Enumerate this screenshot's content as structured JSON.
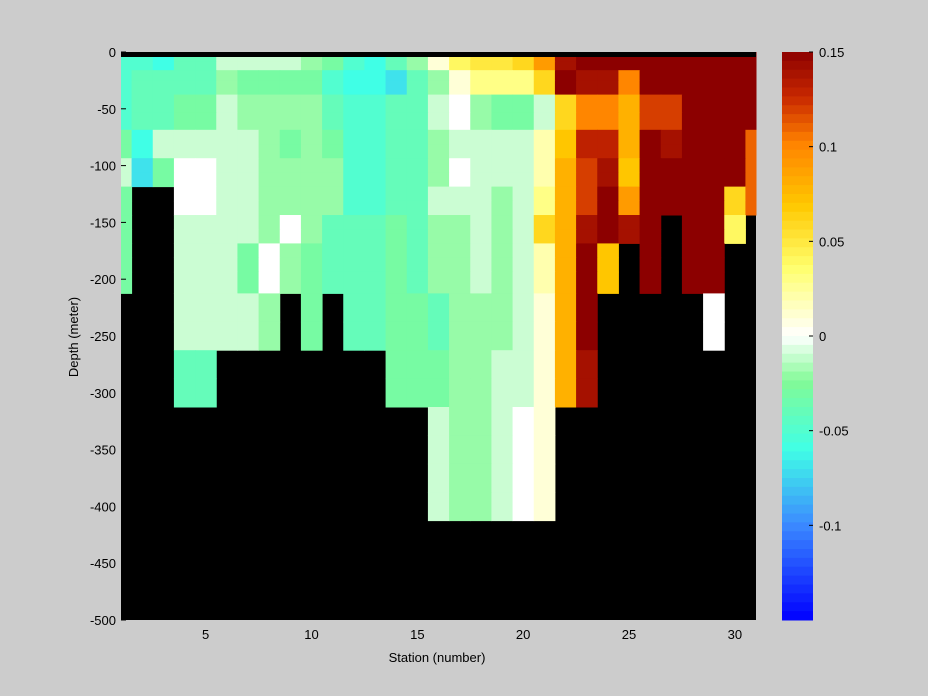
{
  "chart_data": {
    "type": "heatmap",
    "title": "",
    "xlabel": "Station (number)",
    "ylabel": "Depth (meter)",
    "xlim": [
      1,
      31
    ],
    "ylim": [
      -500,
      0
    ],
    "x_ticks": [
      5,
      10,
      15,
      20,
      25,
      30
    ],
    "y_ticks": [
      0,
      -50,
      -100,
      -150,
      -200,
      -250,
      -300,
      -350,
      -400,
      -450,
      -500
    ],
    "colorbar": {
      "range": [
        -0.15,
        0.15
      ],
      "ticks": [
        0.15,
        0.1,
        0.05,
        0,
        -0.05,
        -0.1
      ],
      "colormap": "jet-white-center"
    },
    "missing_color": "#000000",
    "stations": [
      1,
      2,
      3,
      4,
      5,
      6,
      7,
      8,
      9,
      10,
      11,
      12,
      13,
      14,
      15,
      16,
      17,
      18,
      19,
      20,
      21,
      22,
      23,
      24,
      25,
      26,
      27,
      28,
      29,
      30,
      31
    ],
    "depth_levels": [
      -5,
      -12,
      -20,
      -30,
      -45,
      -62,
      -75,
      -87,
      -100,
      -112,
      -125,
      -137,
      -150,
      -162,
      -175,
      -187,
      -200,
      -225,
      -250,
      -275,
      -300,
      -325,
      -350,
      -375,
      -400,
      -425,
      -450,
      -475,
      -500
    ],
    "grid": [
      [
        -0.05,
        -0.05,
        -0.06,
        -0.04,
        -0.04,
        -0.01,
        -0.01,
        -0.01,
        -0.01,
        -0.02,
        -0.03,
        -0.05,
        -0.06,
        -0.04,
        -0.02,
        0.01,
        0.04,
        0.05,
        0.05,
        0.06,
        0.09,
        0.14,
        0.15,
        0.15,
        0.15,
        0.15,
        0.15,
        0.15,
        0.15,
        0.15,
        0.15
      ],
      [
        -0.05,
        -0.05,
        -0.06,
        -0.04,
        -0.04,
        -0.01,
        -0.01,
        -0.01,
        -0.01,
        -0.02,
        -0.03,
        -0.05,
        -0.06,
        -0.04,
        -0.02,
        0.01,
        0.04,
        0.05,
        0.05,
        0.06,
        0.09,
        0.14,
        0.15,
        0.15,
        0.15,
        0.15,
        0.15,
        0.15,
        0.15,
        0.15,
        0.15
      ],
      [
        -0.05,
        -0.04,
        -0.04,
        -0.04,
        -0.04,
        -0.02,
        -0.03,
        -0.03,
        -0.03,
        -0.03,
        -0.05,
        -0.06,
        -0.06,
        -0.07,
        -0.04,
        -0.02,
        0.01,
        0.03,
        0.03,
        0.03,
        0.06,
        0.15,
        0.14,
        0.14,
        0.1,
        0.15,
        0.15,
        0.15,
        0.15,
        0.15,
        0.15
      ],
      [
        -0.05,
        -0.04,
        -0.04,
        -0.04,
        -0.04,
        -0.02,
        -0.03,
        -0.03,
        -0.03,
        -0.03,
        -0.05,
        -0.06,
        -0.06,
        -0.07,
        -0.04,
        -0.02,
        0.01,
        0.03,
        0.03,
        0.03,
        0.06,
        0.15,
        0.14,
        0.14,
        0.1,
        0.15,
        0.15,
        0.15,
        0.15,
        0.15,
        0.15
      ],
      [
        -0.05,
        -0.04,
        -0.04,
        -0.03,
        -0.03,
        -0.01,
        -0.02,
        -0.02,
        -0.02,
        -0.02,
        -0.04,
        -0.05,
        -0.05,
        -0.04,
        -0.04,
        -0.01,
        0.0,
        -0.02,
        -0.03,
        -0.03,
        -0.01,
        0.06,
        0.1,
        0.1,
        0.08,
        0.12,
        0.12,
        0.15,
        0.15,
        0.15,
        0.15
      ],
      [
        -0.05,
        -0.04,
        -0.04,
        -0.03,
        -0.03,
        -0.01,
        -0.02,
        -0.02,
        -0.02,
        -0.02,
        -0.04,
        -0.05,
        -0.05,
        -0.04,
        -0.04,
        -0.01,
        0.0,
        -0.02,
        -0.03,
        -0.03,
        -0.01,
        0.06,
        0.1,
        0.1,
        0.08,
        0.12,
        0.12,
        0.15,
        0.15,
        0.15,
        0.15
      ],
      [
        -0.03,
        -0.06,
        -0.01,
        -0.01,
        -0.01,
        -0.01,
        -0.01,
        -0.02,
        -0.03,
        -0.02,
        -0.03,
        -0.05,
        -0.05,
        -0.04,
        -0.04,
        -0.02,
        -0.01,
        -0.01,
        -0.01,
        -0.01,
        0.02,
        0.07,
        0.13,
        0.13,
        0.08,
        0.15,
        0.14,
        0.15,
        0.15,
        0.15,
        0.11
      ],
      [
        -0.03,
        -0.06,
        -0.01,
        -0.01,
        -0.01,
        -0.01,
        -0.01,
        -0.02,
        -0.03,
        -0.02,
        -0.03,
        -0.05,
        -0.05,
        -0.04,
        -0.04,
        -0.02,
        -0.01,
        -0.01,
        -0.01,
        -0.01,
        0.02,
        0.07,
        0.13,
        0.13,
        0.08,
        0.15,
        0.14,
        0.15,
        0.15,
        0.15,
        0.11
      ],
      [
        -0.01,
        -0.07,
        -0.03,
        0.0,
        0.0,
        -0.01,
        -0.01,
        -0.02,
        -0.02,
        -0.02,
        -0.02,
        -0.05,
        -0.05,
        -0.04,
        -0.04,
        -0.02,
        0.0,
        -0.01,
        -0.01,
        -0.01,
        0.02,
        0.08,
        0.12,
        0.14,
        0.07,
        0.15,
        0.15,
        0.15,
        0.15,
        0.15,
        0.11
      ],
      [
        -0.01,
        -0.07,
        -0.03,
        0.0,
        0.0,
        -0.01,
        -0.01,
        -0.02,
        -0.02,
        -0.02,
        -0.02,
        -0.05,
        -0.05,
        -0.04,
        -0.04,
        -0.02,
        0.0,
        -0.01,
        -0.01,
        -0.01,
        0.02,
        0.08,
        0.12,
        0.14,
        0.07,
        0.15,
        0.15,
        0.15,
        0.15,
        0.15,
        0.11
      ],
      [
        -0.03,
        null,
        null,
        0.0,
        0.0,
        -0.01,
        -0.01,
        -0.02,
        -0.02,
        -0.02,
        -0.02,
        -0.05,
        -0.05,
        -0.04,
        -0.04,
        -0.01,
        -0.01,
        -0.01,
        -0.02,
        -0.01,
        0.03,
        0.08,
        0.12,
        0.15,
        0.09,
        0.15,
        0.15,
        0.15,
        0.15,
        0.06,
        0.11
      ],
      [
        -0.03,
        null,
        null,
        0.0,
        0.0,
        -0.01,
        -0.01,
        -0.02,
        -0.02,
        -0.02,
        -0.02,
        -0.05,
        -0.05,
        -0.04,
        -0.04,
        -0.01,
        -0.01,
        -0.01,
        -0.02,
        -0.01,
        0.03,
        0.08,
        0.12,
        0.15,
        0.09,
        0.15,
        0.15,
        0.15,
        0.15,
        0.06,
        0.11
      ],
      [
        -0.03,
        null,
        null,
        -0.01,
        -0.01,
        -0.01,
        -0.01,
        -0.02,
        0.0,
        -0.02,
        -0.04,
        -0.04,
        -0.04,
        -0.03,
        -0.04,
        -0.02,
        -0.02,
        -0.01,
        -0.02,
        -0.01,
        0.06,
        0.08,
        0.14,
        0.15,
        0.14,
        0.15,
        null,
        0.15,
        0.15,
        0.04,
        null
      ],
      [
        -0.03,
        null,
        null,
        -0.01,
        -0.01,
        -0.01,
        -0.01,
        -0.02,
        0.0,
        -0.02,
        -0.04,
        -0.04,
        -0.04,
        -0.03,
        -0.04,
        -0.02,
        -0.02,
        -0.01,
        -0.02,
        -0.01,
        0.06,
        0.08,
        0.14,
        0.15,
        0.14,
        0.15,
        null,
        0.15,
        0.15,
        0.04,
        null
      ],
      [
        -0.03,
        null,
        null,
        -0.01,
        -0.01,
        -0.01,
        -0.03,
        0.0,
        -0.02,
        -0.03,
        -0.04,
        -0.04,
        -0.04,
        -0.03,
        -0.04,
        -0.02,
        -0.02,
        -0.01,
        -0.02,
        -0.01,
        0.02,
        0.08,
        0.15,
        0.07,
        null,
        0.15,
        null,
        0.15,
        0.15,
        null,
        null
      ],
      [
        -0.03,
        null,
        null,
        -0.01,
        -0.01,
        -0.01,
        -0.03,
        0.0,
        -0.02,
        -0.03,
        -0.04,
        -0.04,
        -0.04,
        -0.03,
        -0.04,
        -0.02,
        -0.02,
        -0.01,
        -0.02,
        -0.01,
        0.02,
        0.08,
        0.15,
        0.07,
        null,
        0.15,
        null,
        0.15,
        0.15,
        null,
        null
      ],
      [
        -0.03,
        null,
        null,
        -0.01,
        -0.01,
        -0.01,
        -0.03,
        0.0,
        -0.02,
        -0.03,
        -0.04,
        -0.04,
        -0.04,
        -0.03,
        -0.04,
        -0.02,
        -0.02,
        -0.01,
        -0.02,
        -0.01,
        0.02,
        0.08,
        0.15,
        0.07,
        null,
        0.15,
        null,
        0.15,
        0.15,
        null,
        null
      ],
      [
        null,
        null,
        null,
        -0.01,
        -0.01,
        -0.01,
        -0.01,
        -0.02,
        null,
        -0.03,
        null,
        -0.04,
        -0.04,
        -0.03,
        -0.03,
        -0.04,
        -0.02,
        -0.02,
        -0.02,
        -0.01,
        0.01,
        0.08,
        0.15,
        null,
        null,
        null,
        null,
        null,
        0.0,
        null,
        null
      ],
      [
        null,
        null,
        null,
        -0.01,
        -0.01,
        -0.01,
        -0.01,
        -0.02,
        null,
        -0.03,
        null,
        -0.04,
        -0.04,
        -0.03,
        -0.03,
        -0.04,
        -0.02,
        -0.02,
        -0.02,
        -0.01,
        0.01,
        0.08,
        0.15,
        null,
        null,
        null,
        null,
        null,
        0.0,
        null,
        null
      ],
      [
        null,
        null,
        null,
        -0.04,
        -0.04,
        null,
        null,
        null,
        null,
        null,
        null,
        null,
        null,
        -0.03,
        -0.03,
        -0.03,
        -0.02,
        -0.02,
        -0.01,
        -0.01,
        0.01,
        0.08,
        0.14,
        null,
        null,
        null,
        null,
        null,
        null,
        null,
        null
      ],
      [
        null,
        null,
        null,
        -0.04,
        -0.04,
        null,
        null,
        null,
        null,
        null,
        null,
        null,
        null,
        -0.03,
        -0.03,
        -0.03,
        -0.02,
        -0.02,
        -0.01,
        -0.01,
        0.01,
        0.08,
        0.14,
        null,
        null,
        null,
        null,
        null,
        null,
        null,
        null
      ],
      [
        null,
        null,
        null,
        null,
        null,
        null,
        null,
        null,
        null,
        null,
        null,
        null,
        null,
        null,
        null,
        -0.01,
        -0.02,
        -0.02,
        -0.01,
        0.0,
        0.01,
        null,
        null,
        null,
        null,
        null,
        null,
        null,
        null,
        null,
        null
      ],
      [
        null,
        null,
        null,
        null,
        null,
        null,
        null,
        null,
        null,
        null,
        null,
        null,
        null,
        null,
        null,
        -0.01,
        -0.02,
        -0.02,
        -0.01,
        0.0,
        0.01,
        null,
        null,
        null,
        null,
        null,
        null,
        null,
        null,
        null,
        null
      ],
      [
        null,
        null,
        null,
        null,
        null,
        null,
        null,
        null,
        null,
        null,
        null,
        null,
        null,
        null,
        null,
        -0.01,
        -0.02,
        -0.02,
        -0.01,
        0.0,
        0.01,
        null,
        null,
        null,
        null,
        null,
        null,
        null,
        null,
        null,
        null
      ],
      [
        null,
        null,
        null,
        null,
        null,
        null,
        null,
        null,
        null,
        null,
        null,
        null,
        null,
        null,
        null,
        -0.01,
        -0.02,
        -0.02,
        -0.01,
        0.0,
        0.01,
        null,
        null,
        null,
        null,
        null,
        null,
        null,
        null,
        null,
        null
      ],
      [
        null,
        null,
        null,
        null,
        null,
        null,
        null,
        null,
        null,
        null,
        null,
        null,
        null,
        null,
        null,
        null,
        null,
        null,
        null,
        null,
        null,
        null,
        null,
        null,
        null,
        null,
        null,
        null,
        null,
        null,
        null
      ],
      [
        null,
        null,
        null,
        null,
        null,
        null,
        null,
        null,
        null,
        null,
        null,
        null,
        null,
        null,
        null,
        null,
        null,
        null,
        null,
        null,
        null,
        null,
        null,
        null,
        null,
        null,
        null,
        null,
        null,
        null,
        null
      ],
      [
        null,
        null,
        null,
        null,
        null,
        null,
        null,
        null,
        null,
        null,
        null,
        null,
        null,
        null,
        null,
        null,
        null,
        null,
        null,
        null,
        null,
        null,
        null,
        null,
        null,
        null,
        null,
        null,
        null,
        null,
        null
      ],
      [
        null,
        null,
        null,
        null,
        null,
        null,
        null,
        null,
        null,
        null,
        null,
        null,
        null,
        null,
        null,
        null,
        null,
        null,
        null,
        null,
        null,
        null,
        null,
        null,
        null,
        null,
        null,
        null,
        null,
        null,
        null
      ]
    ]
  }
}
